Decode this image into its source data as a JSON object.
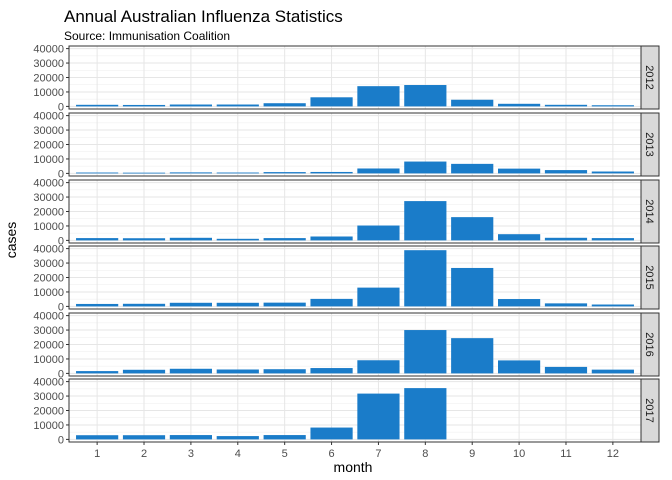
{
  "chart_data": {
    "type": "bar",
    "title": "Annual Australian Influenza Statistics",
    "subtitle": "Source: Immunisation Coalition",
    "xlabel": "month",
    "ylabel": "cases",
    "categories": [
      "1",
      "2",
      "3",
      "4",
      "5",
      "6",
      "7",
      "8",
      "9",
      "10",
      "11",
      "12"
    ],
    "ylim": [
      0,
      40000
    ],
    "y_ticks": [
      "0",
      "10000",
      "20000",
      "30000",
      "40000"
    ],
    "grid": true,
    "facets": "rows, labels on right strip",
    "bar_color": "#1a7cc9",
    "strip_color": "#d9d9d9",
    "series": [
      {
        "name": "2012",
        "values": [
          1100,
          1000,
          1300,
          1300,
          2200,
          6300,
          14000,
          14800,
          4600,
          1800,
          1100,
          800
        ]
      },
      {
        "name": "2013",
        "values": [
          600,
          500,
          700,
          600,
          900,
          1000,
          3400,
          8200,
          6600,
          3300,
          2300,
          1300
        ]
      },
      {
        "name": "2014",
        "values": [
          1600,
          1500,
          1800,
          1100,
          1600,
          2700,
          10300,
          27200,
          16100,
          4300,
          1800,
          1600
        ]
      },
      {
        "name": "2015",
        "values": [
          1700,
          1800,
          2500,
          2500,
          2600,
          5200,
          13000,
          38900,
          26600,
          5100,
          2100,
          1300
        ]
      },
      {
        "name": "2016",
        "values": [
          1600,
          2500,
          3200,
          2700,
          2900,
          3700,
          9100,
          30000,
          24400,
          9000,
          4500,
          2600
        ]
      },
      {
        "name": "2017",
        "values": [
          2900,
          2900,
          3000,
          2300,
          3000,
          8200,
          31700,
          35500,
          null,
          null,
          null,
          null
        ]
      }
    ]
  }
}
